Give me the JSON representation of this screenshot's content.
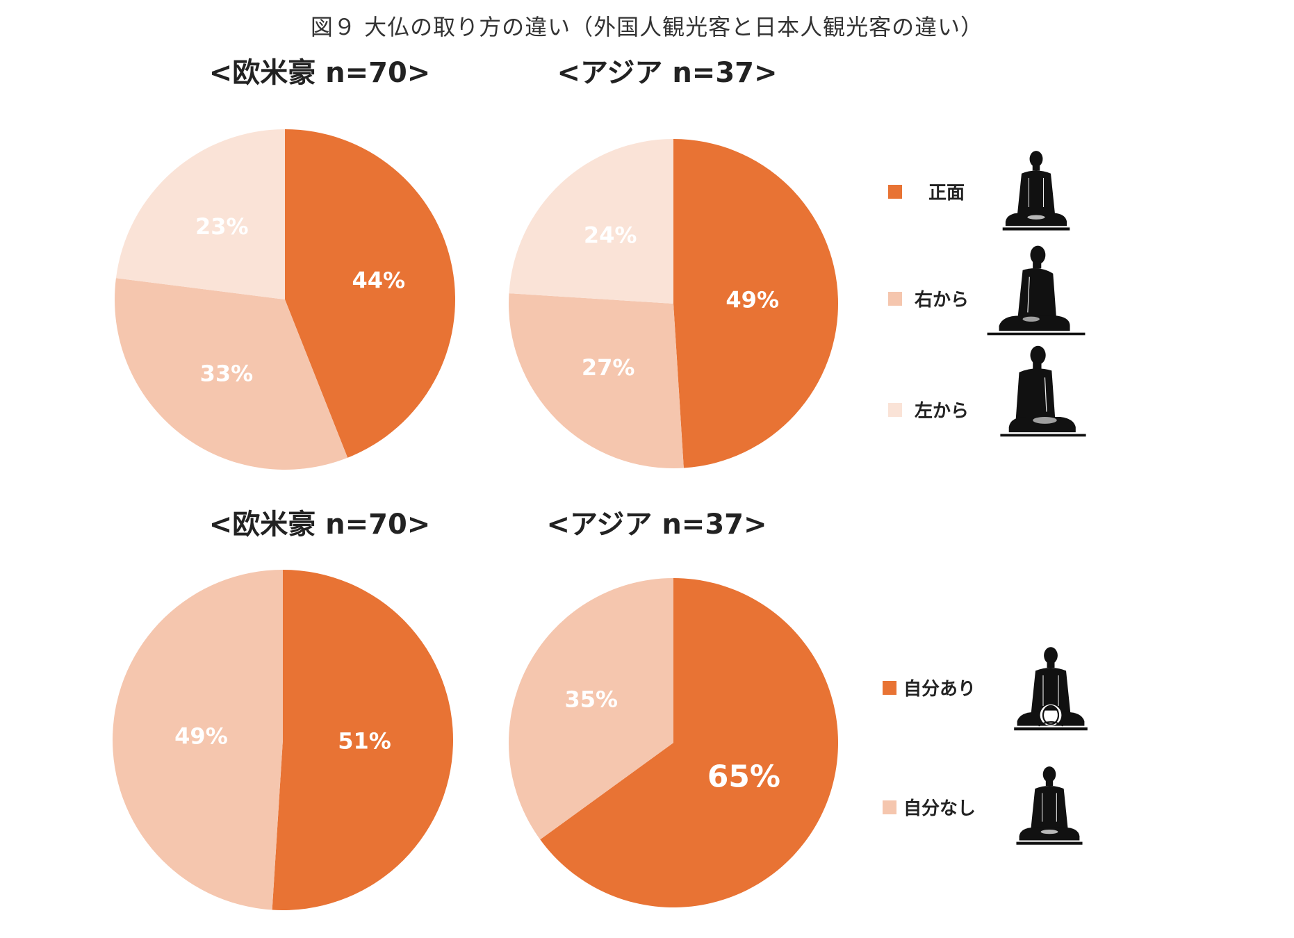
{
  "figure_title": "図９ 大仏の取り方の違い（外国人観光客と日本人観光客の違い）",
  "colors": {
    "dark": "#E87334",
    "medium": "#F5C6AE",
    "light": "#FAE3D7",
    "label": "#FFFFFF"
  },
  "icons": [
    "buddha-front-icon",
    "buddha-right-icon",
    "buddha-left-icon",
    "buddha-with-self-icon",
    "buddha-without-self-icon"
  ],
  "legend_top": [
    {
      "label": "正面",
      "color": "#E87334"
    },
    {
      "label": "右から",
      "color": "#F5C6AE"
    },
    {
      "label": "左から",
      "color": "#FAE3D7"
    }
  ],
  "legend_bottom": [
    {
      "label": "自分あり",
      "color": "#E87334"
    },
    {
      "label": "自分なし",
      "color": "#F5C6AE"
    }
  ],
  "chart_data": [
    {
      "type": "pie",
      "title": "<欧米豪 n=70>",
      "series": [
        {
          "name": "正面",
          "value": 44,
          "label": "44%",
          "color": "#E87334"
        },
        {
          "name": "右から",
          "value": 33,
          "label": "33%",
          "color": "#F5C6AE"
        },
        {
          "name": "左から",
          "value": 23,
          "label": "23%",
          "color": "#FAE3D7"
        }
      ]
    },
    {
      "type": "pie",
      "title": "<アジア n=37>",
      "series": [
        {
          "name": "正面",
          "value": 49,
          "label": "49%",
          "color": "#E87334"
        },
        {
          "name": "右から",
          "value": 27,
          "label": "27%",
          "color": "#F5C6AE"
        },
        {
          "name": "左から",
          "value": 24,
          "label": "24%",
          "color": "#FAE3D7"
        }
      ]
    },
    {
      "type": "pie",
      "title": "<欧米豪 n=70>",
      "series": [
        {
          "name": "自分あり",
          "value": 51,
          "label": "51%",
          "color": "#E87334"
        },
        {
          "name": "自分なし",
          "value": 49,
          "label": "49%",
          "color": "#F5C6AE"
        }
      ]
    },
    {
      "type": "pie",
      "title": "<アジア n=37>",
      "series": [
        {
          "name": "自分あり",
          "value": 65,
          "label": "65%",
          "color": "#E87334"
        },
        {
          "name": "自分なし",
          "value": 35,
          "label": "35%",
          "color": "#F5C6AE"
        }
      ]
    }
  ]
}
